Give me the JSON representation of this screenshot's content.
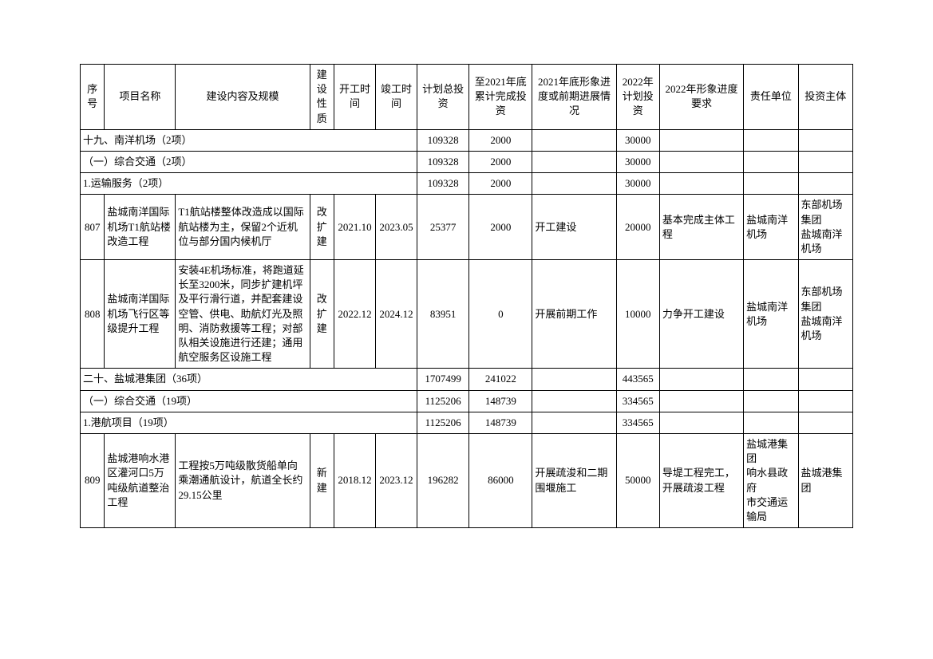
{
  "headers": {
    "seq": "序号",
    "name": "项目名称",
    "content": "建设内容及规模",
    "nature": "建设性质",
    "start": "开工时间",
    "end": "竣工时间",
    "totalInvest": "计划总投资",
    "cumulative": "至2021年底累计完成投资",
    "progress2021": "2021年底形象进度或前期进展情况",
    "plan2022": "2022年计划投资",
    "req2022": "2022年形象进度要求",
    "unit": "责任单位",
    "investor": "投资主体"
  },
  "sections": [
    {
      "title": "十九、南洋机场（2项）",
      "totalInvest": "109328",
      "cumulative": "2000",
      "plan2022": "30000"
    },
    {
      "title": "（一）综合交通（2项）",
      "totalInvest": "109328",
      "cumulative": "2000",
      "plan2022": "30000"
    },
    {
      "title": "1.运输服务（2项）",
      "totalInvest": "109328",
      "cumulative": "2000",
      "plan2022": "30000"
    }
  ],
  "rows": [
    {
      "seq": "807",
      "name": "盐城南洋国际机场T1航站楼改造工程",
      "content": "T1航站楼整体改造成以国际航站楼为主，保留2个近机位与部分国内候机厅",
      "nature": "改扩建",
      "start": "2021.10",
      "end": "2023.05",
      "totalInvest": "25377",
      "cumulative": "2000",
      "progress2021": "开工建设",
      "plan2022": "20000",
      "req2022": "基本完成主体工程",
      "unit": "盐城南洋机场",
      "investor": "东部机场集团\n盐城南洋机场"
    },
    {
      "seq": "808",
      "name": "盐城南洋国际机场飞行区等级提升工程",
      "content": "安装4E机场标准，将跑道延长至3200米，同步扩建机坪及平行滑行道，并配套建设空管、供电、助航灯光及照明、消防救援等工程；对部队相关设施进行还建；通用航空服务区设施工程",
      "nature": "改扩建",
      "start": "2022.12",
      "end": "2024.12",
      "totalInvest": "83951",
      "cumulative": "0",
      "progress2021": "开展前期工作",
      "plan2022": "10000",
      "req2022": "力争开工建设",
      "unit": "盐城南洋机场",
      "investor": "东部机场集团\n盐城南洋机场"
    }
  ],
  "sections2": [
    {
      "title": "二十、盐城港集团（36项）",
      "totalInvest": "1707499",
      "cumulative": "241022",
      "plan2022": "443565"
    },
    {
      "title": "（一）综合交通（19项）",
      "totalInvest": "1125206",
      "cumulative": "148739",
      "plan2022": "334565"
    },
    {
      "title": "1.港航项目（19项）",
      "totalInvest": "1125206",
      "cumulative": "148739",
      "plan2022": "334565"
    }
  ],
  "rows2": [
    {
      "seq": "809",
      "name": "盐城港响水港区灌河口5万吨级航道整治工程",
      "content": "工程按5万吨级散货船单向乘潮通航设计，航道全长约29.15公里",
      "nature": "新建",
      "start": "2018.12",
      "end": "2023.12",
      "totalInvest": "196282",
      "cumulative": "86000",
      "progress2021": "开展疏浚和二期围堰施工",
      "plan2022": "50000",
      "req2022": "导堤工程完工，开展疏浚工程",
      "unit": "盐城港集团\n响水县政府\n市交通运输局",
      "investor": "盐城港集团"
    }
  ]
}
